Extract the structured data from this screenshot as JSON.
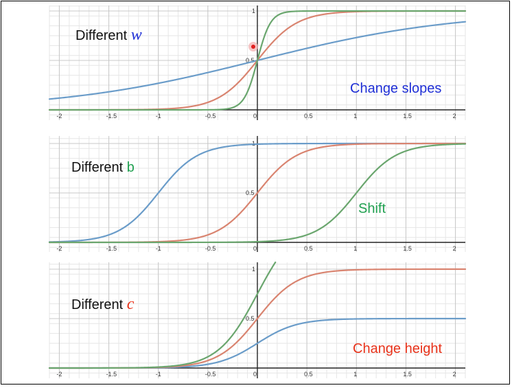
{
  "colors": {
    "blue": "#6a9cc9",
    "red": "#d98470",
    "green": "#6aa66e",
    "text_blue": "#1f2fd6",
    "text_green": "#20a050",
    "text_red": "#e8321a",
    "grid_major": "#c8c8c8",
    "grid_minor": "#e6e6e6"
  },
  "chart_data": [
    {
      "type": "line",
      "title": "",
      "xlim": [
        -2.1,
        2.1
      ],
      "ylim": [
        -0.05,
        1.03
      ],
      "x_ticks": [
        "-2",
        "-1.5",
        "-1",
        "-0.5",
        "0",
        "0.5",
        "1",
        "1.5",
        "2"
      ],
      "y_ticks": [
        "0.5",
        "1"
      ],
      "grid": true,
      "annotations": {
        "left": "Different",
        "var": "w",
        "right": "Change slopes"
      },
      "series": [
        {
          "color": "blue",
          "c": 1,
          "w": 1,
          "b": 0
        },
        {
          "color": "red",
          "c": 1,
          "w": 5,
          "b": 0
        },
        {
          "color": "green",
          "c": 1,
          "w": 15,
          "b": 0
        }
      ]
    },
    {
      "type": "line",
      "title": "",
      "xlim": [
        -2.1,
        2.1
      ],
      "ylim": [
        -0.05,
        1.03
      ],
      "x_ticks": [
        "-2",
        "-1.5",
        "-1",
        "-0.5",
        "0",
        "0.5",
        "1",
        "1.5",
        "2"
      ],
      "y_ticks": [
        "0.5",
        "1"
      ],
      "grid": true,
      "annotations": {
        "left": "Different",
        "var": "b",
        "right": "Shift"
      },
      "series": [
        {
          "color": "blue",
          "c": 1,
          "w": 5,
          "b": 5
        },
        {
          "color": "red",
          "c": 1,
          "w": 5,
          "b": 0
        },
        {
          "color": "green",
          "c": 1,
          "w": 5,
          "b": -5
        }
      ]
    },
    {
      "type": "line",
      "title": "",
      "xlim": [
        -2.1,
        2.1
      ],
      "ylim": [
        -0.05,
        1.03
      ],
      "x_ticks": [
        "-2",
        "-1.5",
        "-1",
        "-0.5",
        "0",
        "0.5",
        "1",
        "1.5",
        "2"
      ],
      "y_ticks": [
        "0.5",
        "1"
      ],
      "grid": true,
      "annotations": {
        "left": "Different",
        "var": "c",
        "right": "Change height"
      },
      "series": [
        {
          "color": "blue",
          "c": 0.5,
          "w": 5,
          "b": 0
        },
        {
          "color": "red",
          "c": 1,
          "w": 5,
          "b": 0
        },
        {
          "color": "green",
          "c": 1.5,
          "w": 5,
          "b": 0
        }
      ]
    }
  ]
}
